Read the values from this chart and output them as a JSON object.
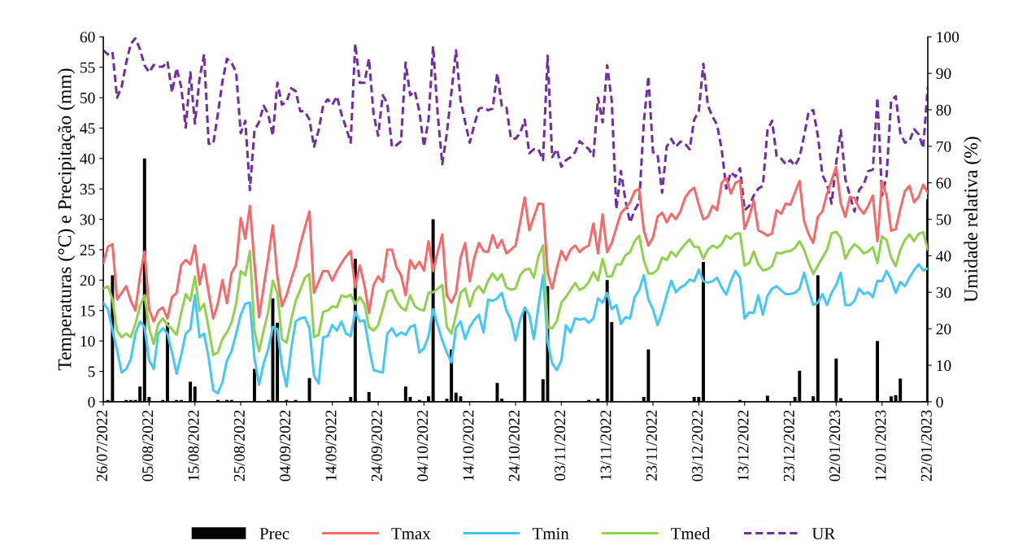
{
  "chart_data": {
    "type": "line",
    "ylabel": "Temperaturas (°C) e Precipitação (mm)",
    "y2label": "Umidade relativa (%)",
    "x": [
      "2022-07-26",
      "2022-07-27",
      "2022-07-28",
      "2022-07-29",
      "2022-07-30",
      "2022-07-31",
      "2022-08-01",
      "2022-08-02",
      "2022-08-03",
      "2022-08-04",
      "2022-08-05",
      "2022-08-06",
      "2022-08-07",
      "2022-08-08",
      "2022-08-09",
      "2022-08-10",
      "2022-08-11",
      "2022-08-12",
      "2022-08-13",
      "2022-08-14",
      "2022-08-15",
      "2022-08-16",
      "2022-08-17",
      "2022-08-18",
      "2022-08-19",
      "2022-08-20",
      "2022-08-21",
      "2022-08-22",
      "2022-08-23",
      "2022-08-24",
      "2022-08-25",
      "2022-08-26",
      "2022-08-27",
      "2022-08-28",
      "2022-08-29",
      "2022-08-30",
      "2022-08-31",
      "2022-09-01",
      "2022-09-02",
      "2022-09-03",
      "2022-09-04",
      "2022-09-05",
      "2022-09-06",
      "2022-09-07",
      "2022-09-08",
      "2022-09-09",
      "2022-09-10",
      "2022-09-11",
      "2022-09-12",
      "2022-09-13",
      "2022-09-14",
      "2022-09-15",
      "2022-09-16",
      "2022-09-17",
      "2022-09-18",
      "2022-09-19",
      "2022-09-20",
      "2022-09-21",
      "2022-09-22",
      "2022-09-23",
      "2022-09-24",
      "2022-09-25",
      "2022-09-26",
      "2022-09-27",
      "2022-09-28",
      "2022-09-29",
      "2022-09-30",
      "2022-10-01",
      "2022-10-02",
      "2022-10-03",
      "2022-10-04",
      "2022-10-05",
      "2022-10-06",
      "2022-10-07",
      "2022-10-08",
      "2022-10-09",
      "2022-10-10",
      "2022-10-11",
      "2022-10-12",
      "2022-10-13",
      "2022-10-14",
      "2022-10-15",
      "2022-10-16",
      "2022-10-17",
      "2022-10-18",
      "2022-10-19",
      "2022-10-20",
      "2022-10-21",
      "2022-10-22",
      "2022-10-23",
      "2022-10-24",
      "2022-10-25",
      "2022-10-26",
      "2022-10-27",
      "2022-10-28",
      "2022-10-29",
      "2022-10-30",
      "2022-10-31",
      "2022-11-01",
      "2022-11-02",
      "2022-11-03",
      "2022-11-04",
      "2022-11-05",
      "2022-11-06",
      "2022-11-07",
      "2022-11-08",
      "2022-11-09",
      "2022-11-10",
      "2022-11-11",
      "2022-11-12",
      "2022-11-13",
      "2022-11-14",
      "2022-11-15",
      "2022-11-16",
      "2022-11-17",
      "2022-11-18",
      "2022-11-19",
      "2022-11-20",
      "2022-11-21",
      "2022-11-22",
      "2022-11-23",
      "2022-11-24",
      "2022-11-25",
      "2022-11-26",
      "2022-11-27",
      "2022-11-28",
      "2022-11-29",
      "2022-11-30",
      "2022-12-01",
      "2022-12-02",
      "2022-12-03",
      "2022-12-04",
      "2022-12-05",
      "2022-12-06",
      "2022-12-07",
      "2022-12-08",
      "2022-12-09",
      "2022-12-10",
      "2022-12-11",
      "2022-12-12",
      "2022-12-13",
      "2022-12-14",
      "2022-12-15",
      "2022-12-16",
      "2022-12-17",
      "2022-12-18",
      "2022-12-19",
      "2022-12-20",
      "2022-12-21",
      "2022-12-22",
      "2022-12-23",
      "2022-12-24",
      "2022-12-25",
      "2022-12-26",
      "2022-12-27",
      "2022-12-28",
      "2022-12-29",
      "2022-12-30",
      "2022-12-31",
      "2023-01-01",
      "2023-01-02",
      "2023-01-03",
      "2023-01-04",
      "2023-01-05",
      "2023-01-06",
      "2023-01-07",
      "2023-01-08",
      "2023-01-09",
      "2023-01-10",
      "2023-01-11",
      "2023-01-12",
      "2023-01-13",
      "2023-01-14",
      "2023-01-15",
      "2023-01-16",
      "2023-01-17",
      "2023-01-18",
      "2023-01-19",
      "2023-01-20",
      "2023-01-21",
      "2023-01-22"
    ],
    "series": [
      {
        "name": "Prec",
        "type": "bar",
        "color": "#000000",
        "x": [
          "2022-07-27",
          "2022-07-28",
          "2022-07-31",
          "2022-08-01",
          "2022-08-02",
          "2022-08-03",
          "2022-08-04",
          "2022-08-05",
          "2022-08-08",
          "2022-08-09",
          "2022-08-11",
          "2022-08-12",
          "2022-08-14",
          "2022-08-15",
          "2022-08-20",
          "2022-08-22",
          "2022-08-23",
          "2022-08-28",
          "2022-08-31",
          "2022-09-01",
          "2022-09-02",
          "2022-09-04",
          "2022-09-06",
          "2022-09-09",
          "2022-09-18",
          "2022-09-19",
          "2022-09-22",
          "2022-09-30",
          "2022-10-01",
          "2022-10-03",
          "2022-10-05",
          "2022-10-06",
          "2022-10-09",
          "2022-10-10",
          "2022-10-11",
          "2022-10-12",
          "2022-10-20",
          "2022-10-21",
          "2022-10-26",
          "2022-10-30",
          "2022-10-31",
          "2022-11-09",
          "2022-11-11",
          "2022-11-13",
          "2022-11-14",
          "2022-11-21",
          "2022-11-22",
          "2022-12-02",
          "2022-12-03",
          "2022-12-04",
          "2022-12-12",
          "2022-12-18",
          "2022-12-24",
          "2022-12-25",
          "2022-12-28",
          "2022-12-29",
          "2023-01-02",
          "2023-01-03",
          "2023-01-11",
          "2023-01-14",
          "2023-01-15",
          "2023-01-16",
          "2023-01-22"
        ],
        "values": [
          0.3,
          20.8,
          0.3,
          0.3,
          0.3,
          2.5,
          40,
          0.8,
          0.3,
          13.0,
          0.3,
          0.3,
          3.3,
          2.5,
          0.3,
          0.3,
          0.3,
          5.4,
          0.3,
          17.0,
          13.0,
          0.3,
          0.3,
          3.9,
          0.8,
          23.5,
          1.6,
          2.5,
          0.8,
          0.3,
          0.9,
          30.0,
          0.5,
          8.6,
          1.5,
          0.9,
          3.1,
          0.5,
          15.0,
          3.7,
          19.0,
          0.3,
          0.5,
          20.0,
          13.1,
          0.8,
          8.6,
          0.8,
          0.8,
          23.0,
          0.3,
          1.0,
          0.8,
          5.1,
          0.9,
          20.8,
          7.1,
          0.6,
          10.0,
          0.9,
          1.1,
          3.8,
          33.3
        ]
      },
      {
        "name": "Tmax",
        "color": "#f8696b",
        "values": [
          22.8,
          25.5,
          25.9,
          16.8,
          17.9,
          19.0,
          16.6,
          15.0,
          20.6,
          24.7,
          15.2,
          13.2,
          15.0,
          15.5,
          13.7,
          17.2,
          17.9,
          22.5,
          23.3,
          22.6,
          25.7,
          19.3,
          22.6,
          17.9,
          13.7,
          16.1,
          20.0,
          16.2,
          21.2,
          22.5,
          30.2,
          26.8,
          32.2,
          22.8,
          13.9,
          18.8,
          23.7,
          29.0,
          20.6,
          15.7,
          17.5,
          20.1,
          22.4,
          25.9,
          28.6,
          31.3,
          17.9,
          19.7,
          21.5,
          21.5,
          19.9,
          21.5,
          22.8,
          23.9,
          24.8,
          18.8,
          22.4,
          19.2,
          14.6,
          19.2,
          20.6,
          19.7,
          25.0,
          25.0,
          22.1,
          20.8,
          17.5,
          23.3,
          21.9,
          23.0,
          21.6,
          26.4,
          21.5,
          24.6,
          27.5,
          17.5,
          16.3,
          17.9,
          23.7,
          26.1,
          19.8,
          23.7,
          26.1,
          24.8,
          24.6,
          27.4,
          25.3,
          26.6,
          24.4,
          25.0,
          25.7,
          29.5,
          33.6,
          28.2,
          30.4,
          32.6,
          32.5,
          21.2,
          18.6,
          21.9,
          24.8,
          23.3,
          25.0,
          25.7,
          24.6,
          25.3,
          25.7,
          29.3,
          24.4,
          30.8,
          24.6,
          26.1,
          28.6,
          31.0,
          31.8,
          32.8,
          34.6,
          35.0,
          28.2,
          25.7,
          27.0,
          30.4,
          31.1,
          29.5,
          30.9,
          30.0,
          31.3,
          33.5,
          34.6,
          35.2,
          32.4,
          30.0,
          30.4,
          32.2,
          31.5,
          36.0,
          36.8,
          34.2,
          36.0,
          36.4,
          28.4,
          30.4,
          33.1,
          28.2,
          27.8,
          27.3,
          27.7,
          31.5,
          30.9,
          32.6,
          32.4,
          34.4,
          36.3,
          29.7,
          27.5,
          26.1,
          30.4,
          31.3,
          34.2,
          36.4,
          38.6,
          32.6,
          30.4,
          33.7,
          33.5,
          31.9,
          30.9,
          32.2,
          33.9,
          26.4,
          36.2,
          33.9,
          28.1,
          28.4,
          31.7,
          34.6,
          35.5,
          32.8,
          33.7,
          35.7,
          34.4
        ]
      },
      {
        "name": "Tmin",
        "color": "#45c8f5",
        "values": [
          16.3,
          15.2,
          11.7,
          8.5,
          4.8,
          5.4,
          7.0,
          11.2,
          13.2,
          12.3,
          6.8,
          5.4,
          11.2,
          12.1,
          11.2,
          8.1,
          4.6,
          7.7,
          11.2,
          11.9,
          17.5,
          10.6,
          11.2,
          7.2,
          1.9,
          1.4,
          3.2,
          6.8,
          8.3,
          11.2,
          14.3,
          16.1,
          16.3,
          7.2,
          2.8,
          6.3,
          8.6,
          12.3,
          11.9,
          5.9,
          2.5,
          8.6,
          13.2,
          13.7,
          13.9,
          12.1,
          4.3,
          3.0,
          10.6,
          10.8,
          12.6,
          11.7,
          13.2,
          11.2,
          10.8,
          14.8,
          13.2,
          13.4,
          9.0,
          5.2,
          5.0,
          4.8,
          11.2,
          12.1,
          10.8,
          11.4,
          11.0,
          12.3,
          12.6,
          8.1,
          8.8,
          10.8,
          15.2,
          12.6,
          10.1,
          8.1,
          6.5,
          12.1,
          13.2,
          10.3,
          12.3,
          13.5,
          14.3,
          11.4,
          16.8,
          16.6,
          17.0,
          17.9,
          15.0,
          13.5,
          10.1,
          13.5,
          15.5,
          14.3,
          10.3,
          15.7,
          20.8,
          9.9,
          6.3,
          5.2,
          6.8,
          12.6,
          11.4,
          13.7,
          13.5,
          13.7,
          13.0,
          13.7,
          17.0,
          16.3,
          17.9,
          15.2,
          15.9,
          12.8,
          13.9,
          13.7,
          17.2,
          18.4,
          20.8,
          16.8,
          15.2,
          12.6,
          14.8,
          17.5,
          19.9,
          18.0,
          18.8,
          19.2,
          20.1,
          19.8,
          21.7,
          19.8,
          19.6,
          19.8,
          20.4,
          18.8,
          17.6,
          19.8,
          21.5,
          20.4,
          13.7,
          14.7,
          14.6,
          17.5,
          14.3,
          17.4,
          18.6,
          19.0,
          18.3,
          17.7,
          17.7,
          17.9,
          18.6,
          21.2,
          18.4,
          15.9,
          16.3,
          17.7,
          15.9,
          17.9,
          19.2,
          21.2,
          15.9,
          15.9,
          16.6,
          18.6,
          17.7,
          18.0,
          17.2,
          19.9,
          19.8,
          21.5,
          20.1,
          17.9,
          19.7,
          19.0,
          20.4,
          21.6,
          22.6,
          21.6,
          21.9
        ]
      },
      {
        "name": "Tmed",
        "color": "#92d050",
        "values": [
          18.6,
          19.0,
          16.8,
          11.7,
          10.6,
          11.2,
          10.6,
          12.8,
          15.7,
          17.5,
          12.1,
          9.5,
          12.8,
          13.7,
          12.6,
          11.9,
          11.0,
          14.6,
          17.7,
          16.6,
          20.6,
          15.0,
          16.1,
          12.1,
          7.7,
          8.1,
          10.3,
          11.4,
          13.0,
          16.1,
          21.5,
          20.8,
          24.8,
          11.7,
          8.3,
          11.7,
          14.8,
          19.9,
          17.9,
          10.3,
          9.7,
          13.4,
          16.6,
          18.4,
          20.4,
          21.0,
          10.6,
          11.0,
          14.8,
          15.0,
          15.7,
          15.5,
          17.5,
          17.2,
          17.6,
          16.1,
          17.2,
          16.1,
          12.3,
          11.7,
          12.6,
          15.2,
          18.1,
          18.4,
          16.6,
          15.5,
          15.0,
          17.5,
          15.7,
          15.2,
          15.0,
          17.9,
          18.0,
          18.6,
          19.2,
          12.3,
          11.2,
          14.3,
          17.9,
          18.6,
          15.7,
          18.1,
          19.0,
          17.9,
          19.9,
          21.1,
          20.0,
          21.0,
          18.8,
          18.4,
          18.6,
          20.8,
          21.7,
          21.9,
          20.4,
          23.9,
          25.7,
          12.3,
          12.1,
          13.2,
          16.3,
          17.2,
          18.4,
          19.5,
          18.4,
          18.8,
          19.7,
          21.3,
          19.9,
          23.5,
          20.6,
          20.6,
          22.6,
          22.6,
          24.1,
          24.6,
          26.4,
          27.3,
          23.3,
          21.1,
          21.1,
          21.7,
          23.7,
          23.3,
          24.7,
          23.9,
          25.0,
          25.9,
          26.7,
          25.5,
          25.4,
          23.5,
          25.0,
          25.7,
          25.3,
          25.9,
          27.3,
          26.8,
          27.6,
          27.7,
          22.4,
          22.8,
          24.7,
          22.6,
          21.6,
          21.8,
          22.3,
          24.5,
          24.4,
          24.7,
          24.8,
          25.3,
          26.4,
          25.0,
          22.8,
          21.0,
          22.4,
          23.7,
          25.0,
          27.7,
          27.9,
          27.0,
          23.5,
          25.0,
          25.9,
          25.3,
          24.4,
          24.7,
          25.4,
          22.8,
          27.2,
          26.6,
          23.7,
          22.3,
          25.0,
          26.6,
          27.5,
          26.4,
          27.6,
          27.9,
          25.0
        ]
      },
      {
        "name": "UR",
        "axis": "y2",
        "line_style": "dashed",
        "color": "#7030a0",
        "values": [
          96.3,
          95.2,
          95.9,
          83.3,
          86.3,
          92.9,
          98.1,
          99.6,
          96.6,
          92.2,
          90.3,
          92.3,
          91.8,
          91.8,
          93.3,
          84.8,
          91.4,
          86.3,
          75.1,
          90.3,
          76.2,
          88.5,
          95.2,
          70.7,
          70.7,
          78.8,
          87.7,
          94.0,
          92.9,
          90.3,
          73.6,
          77.0,
          58.0,
          74.4,
          76.6,
          81.1,
          78.8,
          72.9,
          87.4,
          81.4,
          82.2,
          85.9,
          85.1,
          79.6,
          79.6,
          77.3,
          69.9,
          74.4,
          81.1,
          82.9,
          81.4,
          83.7,
          78.8,
          75.1,
          71.0,
          98.1,
          87.4,
          87.4,
          94.0,
          78.8,
          72.9,
          84.0,
          81.8,
          69.9,
          70.3,
          71.4,
          92.9,
          84.0,
          85.1,
          79.6,
          69.9,
          77.3,
          97.4,
          78.8,
          65.1,
          73.6,
          84.8,
          96.3,
          82.5,
          76.6,
          71.0,
          75.9,
          80.3,
          80.7,
          79.9,
          80.3,
          90.0,
          81.1,
          80.7,
          72.1,
          72.1,
          73.6,
          77.3,
          68.1,
          69.2,
          69.2,
          66.2,
          94.8,
          67.0,
          69.2,
          64.4,
          66.2,
          67.0,
          68.4,
          71.4,
          70.3,
          69.2,
          67.3,
          83.3,
          76.6,
          92.2,
          82.5,
          52.8,
          63.2,
          55.1,
          49.1,
          52.5,
          54.7,
          76.6,
          89.2,
          68.4,
          67.7,
          57.3,
          69.9,
          72.0,
          69.9,
          71.3,
          70.7,
          69.2,
          77.3,
          79.6,
          92.6,
          81.1,
          78.1,
          75.9,
          69.2,
          58.4,
          62.9,
          61.7,
          64.0,
          52.5,
          53.6,
          56.5,
          58.4,
          59.2,
          74.4,
          77.0,
          67.3,
          66.6,
          65.1,
          66.2,
          64.7,
          67.0,
          72.9,
          79.6,
          79.9,
          72.9,
          62.1,
          59.5,
          54.3,
          65.5,
          74.4,
          61.0,
          56.5,
          52.1,
          58.0,
          59.5,
          63.2,
          63.6,
          83.3,
          56.5,
          61.8,
          82.5,
          83.7,
          73.6,
          71.0,
          71.4,
          74.7,
          73.3,
          69.5,
          86.3
        ]
      }
    ],
    "xlim": [
      "2022-07-26",
      "2023-01-22"
    ],
    "xticks": [
      {
        "value": "2022-07-26",
        "label": "26/07/2022"
      },
      {
        "value": "2022-08-05",
        "label": "05/08/2022"
      },
      {
        "value": "2022-08-15",
        "label": "15/08/2022"
      },
      {
        "value": "2022-08-25",
        "label": "25/08/2022"
      },
      {
        "value": "2022-09-04",
        "label": "04/09/2022"
      },
      {
        "value": "2022-09-14",
        "label": "14/09/2022"
      },
      {
        "value": "2022-09-24",
        "label": "24/09/2022"
      },
      {
        "value": "2022-10-04",
        "label": "04/10/2022"
      },
      {
        "value": "2022-10-14",
        "label": "14/10/2022"
      },
      {
        "value": "2022-10-24",
        "label": "24/10/2022"
      },
      {
        "value": "2022-11-03",
        "label": "03/11/2022"
      },
      {
        "value": "2022-11-13",
        "label": "13/11/2022"
      },
      {
        "value": "2022-11-23",
        "label": "23/11/2022"
      },
      {
        "value": "2022-12-03",
        "label": "03/12/2022"
      },
      {
        "value": "2022-12-13",
        "label": "13/12/2022"
      },
      {
        "value": "2022-12-23",
        "label": "23/12/2022"
      },
      {
        "value": "2023-01-02",
        "label": "02/01/2023"
      },
      {
        "value": "2023-01-12",
        "label": "12/01/2023"
      },
      {
        "value": "2023-01-22",
        "label": "22/01/2023"
      }
    ],
    "ylim": [
      0,
      60
    ],
    "yticks": [
      0,
      5,
      10,
      15,
      20,
      25,
      30,
      35,
      40,
      45,
      50,
      55,
      60
    ],
    "y2lim": [
      0,
      100
    ],
    "y2ticks": [
      0,
      10,
      20,
      30,
      40,
      50,
      60,
      70,
      80,
      90,
      100
    ],
    "grid": false,
    "legend": "bottom",
    "marker": "none",
    "line_style": "solid"
  }
}
